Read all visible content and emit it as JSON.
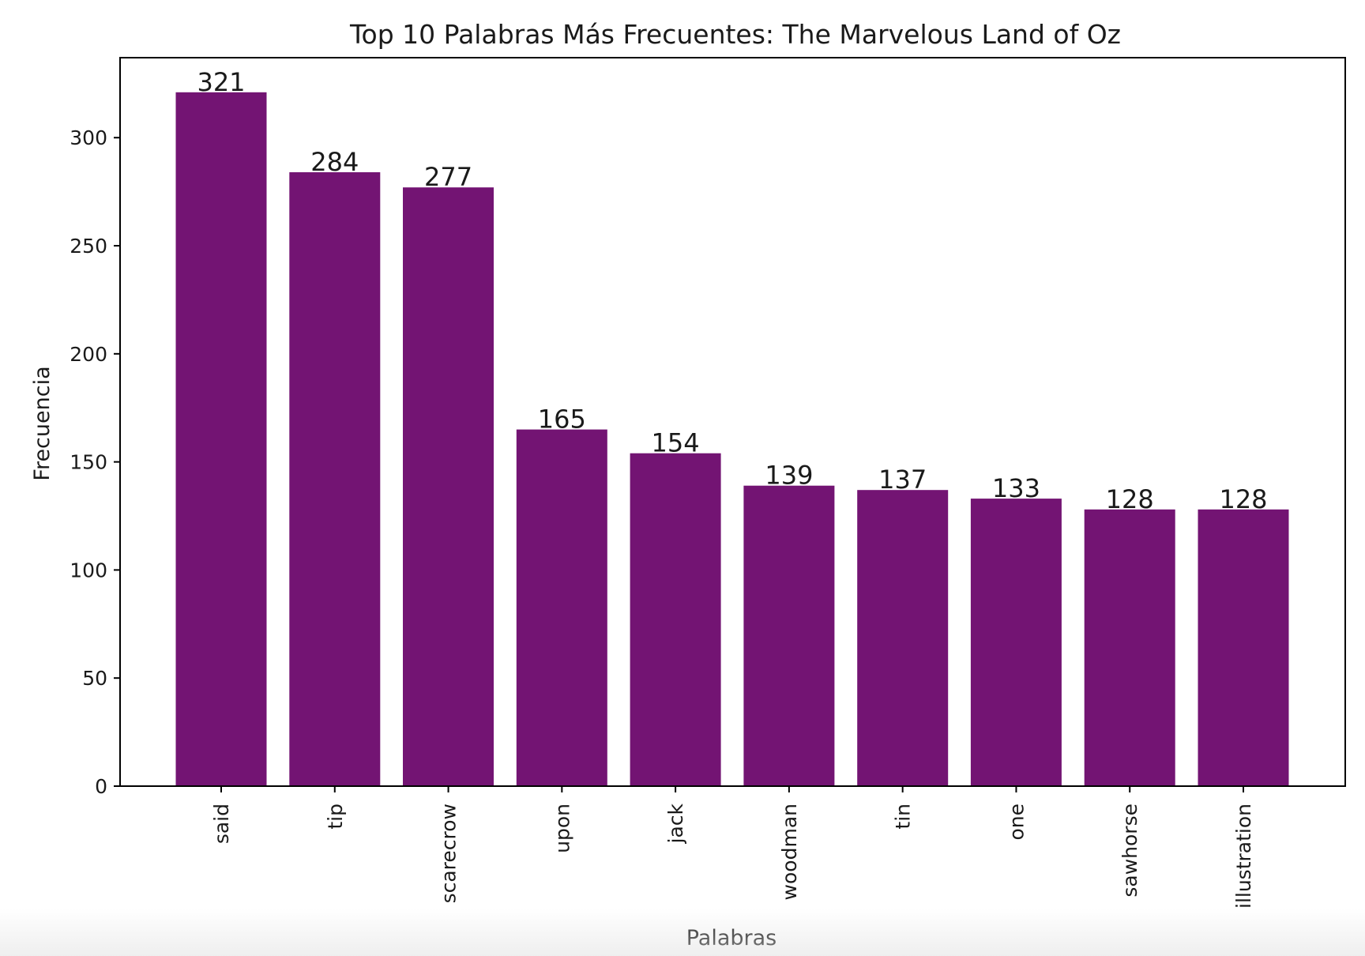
{
  "chart_data": {
    "type": "bar",
    "title": "Top 10 Palabras Más Frecuentes: The Marvelous Land of Oz",
    "xlabel": "Palabras",
    "ylabel": "Frecuencia",
    "categories": [
      "said",
      "tip",
      "scarecrow",
      "upon",
      "jack",
      "woodman",
      "tin",
      "one",
      "sawhorse",
      "illustration"
    ],
    "values": [
      321,
      284,
      277,
      165,
      154,
      139,
      137,
      133,
      128,
      128
    ],
    "data_labels": [
      "321",
      "284",
      "277",
      "165",
      "154",
      "139",
      "137",
      "133",
      "128",
      "128"
    ],
    "ylim": [
      0,
      337
    ],
    "yticks": [
      0,
      50,
      100,
      150,
      200,
      250,
      300
    ],
    "ytick_labels": [
      "0",
      "50",
      "100",
      "150",
      "200",
      "250",
      "300"
    ],
    "bar_color": "#731473",
    "grid": false,
    "legend": "none"
  }
}
